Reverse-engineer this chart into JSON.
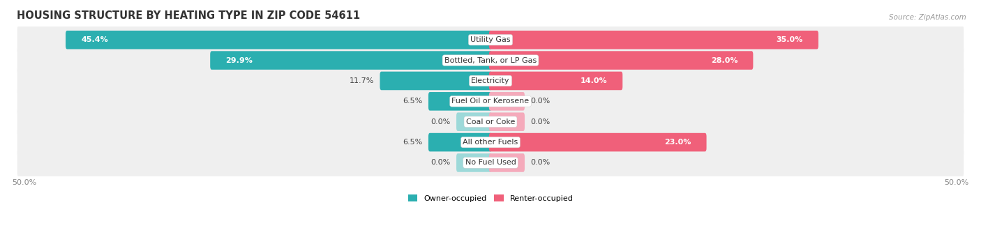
{
  "title": "HOUSING STRUCTURE BY HEATING TYPE IN ZIP CODE 54611",
  "source": "Source: ZipAtlas.com",
  "categories": [
    "Utility Gas",
    "Bottled, Tank, or LP Gas",
    "Electricity",
    "Fuel Oil or Kerosene",
    "Coal or Coke",
    "All other Fuels",
    "No Fuel Used"
  ],
  "owner_values": [
    45.4,
    29.9,
    11.7,
    6.5,
    0.0,
    6.5,
    0.0
  ],
  "renter_values": [
    35.0,
    28.0,
    14.0,
    0.0,
    0.0,
    23.0,
    0.0
  ],
  "owner_color_dark": "#2BAFB0",
  "owner_color_light": "#9DD9D9",
  "renter_color_dark": "#F0607A",
  "renter_color_light": "#F5AABB",
  "row_bg_color": "#EFEFEF",
  "row_bg_alt": "#E8E8E8",
  "axis_limit": 50.0,
  "title_fontsize": 10.5,
  "label_fontsize": 8.0,
  "value_fontsize": 8.0,
  "tick_fontsize": 8.0,
  "source_fontsize": 7.5,
  "bar_height": 0.58,
  "stub_value": 3.5
}
